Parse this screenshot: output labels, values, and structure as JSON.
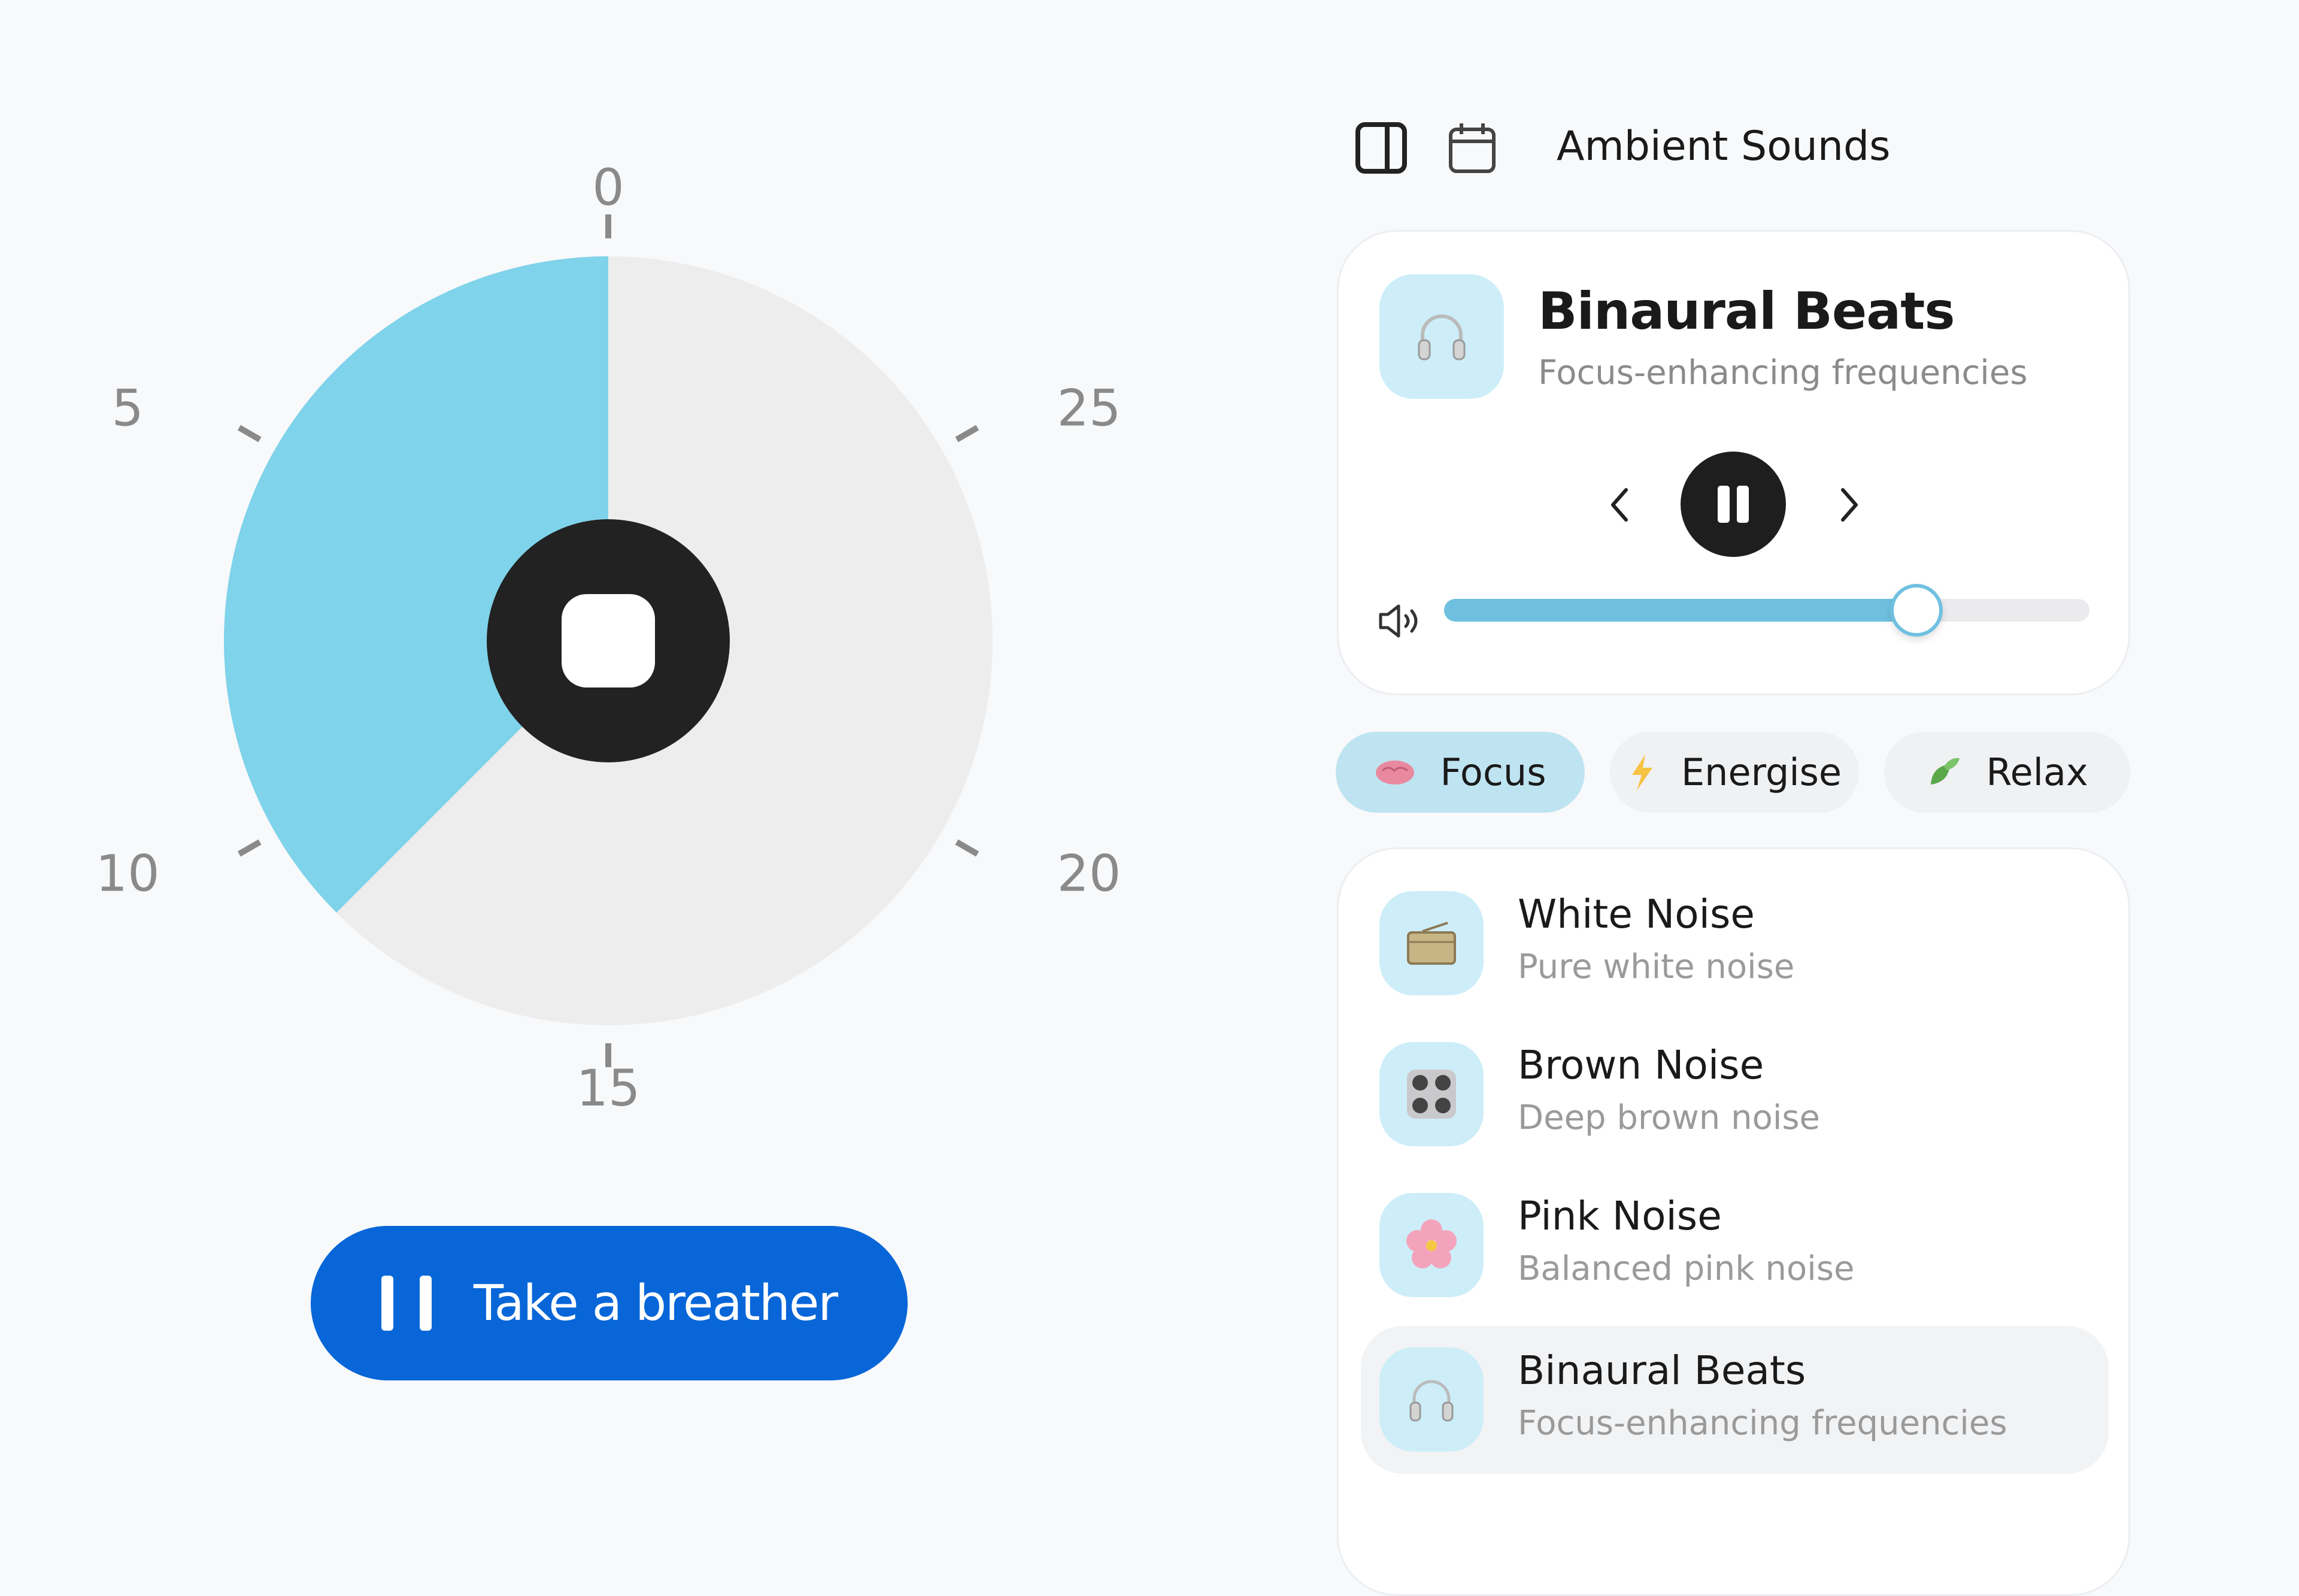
{
  "timer": {
    "dial_max_minutes": 30,
    "remaining_minutes": 11.25,
    "tick_labels": [
      "0",
      "5",
      "10",
      "15",
      "20",
      "25"
    ],
    "tick_values": [
      0,
      5,
      10,
      15,
      20,
      25
    ],
    "remaining_color": "#7fd3ea",
    "elapsed_color": "#ededed",
    "center_button": "stop"
  },
  "breather_button": {
    "label": "Take a breather",
    "icon": "pause-icon",
    "color": "#0866d8"
  },
  "header": {
    "title": "Ambient Sounds",
    "icons": [
      "sidebar-toggle-icon",
      "calendar-icon"
    ]
  },
  "now_playing": {
    "title": "Binaural Beats",
    "subtitle": "Focus-enhancing frequencies",
    "icon": "headphones-icon",
    "state": "playing",
    "volume_percent": 73
  },
  "categories": [
    {
      "label": "Focus",
      "icon": "brain-icon",
      "selected": true
    },
    {
      "label": "Energise",
      "icon": "lightning-icon",
      "selected": false
    },
    {
      "label": "Relax",
      "icon": "leaf-icon",
      "selected": false
    }
  ],
  "sounds": [
    {
      "title": "White Noise",
      "subtitle": "Pure white noise",
      "icon": "radio-icon"
    },
    {
      "title": "Brown Noise",
      "subtitle": "Deep brown noise",
      "icon": "control-knobs-icon"
    },
    {
      "title": "Pink Noise",
      "subtitle": "Balanced pink noise",
      "icon": "flower-icon"
    },
    {
      "title": "Binaural Beats",
      "subtitle": "Focus-enhancing frequencies",
      "icon": "headphones-icon",
      "selected": true
    }
  ]
}
